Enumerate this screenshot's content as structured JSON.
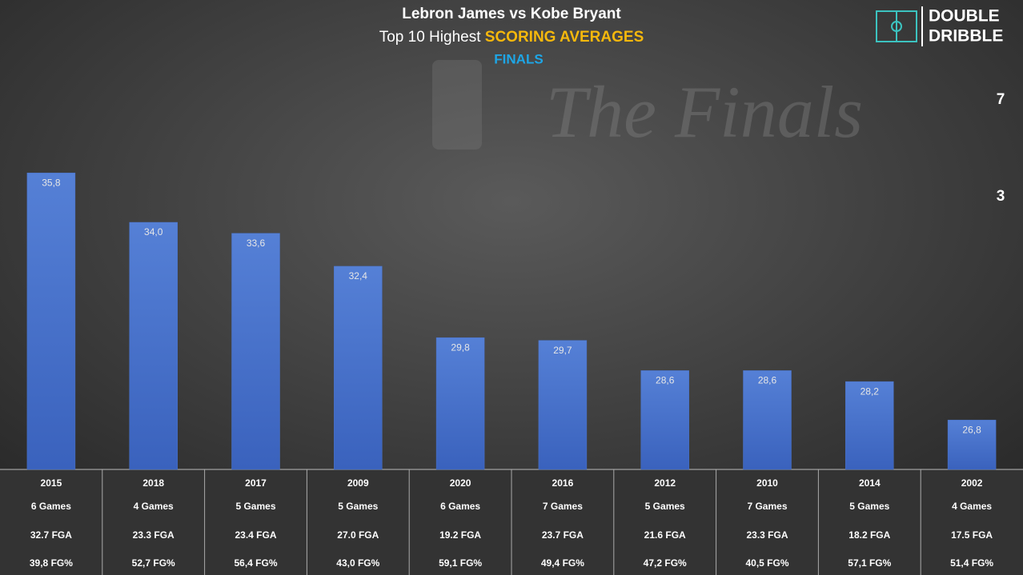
{
  "chart_data": {
    "type": "bar",
    "title": "Lebron James vs Kobe Bryant",
    "subtitle": "Top 10 Highest ",
    "subtitle_highlight": "SCORING AVERAGES",
    "subtitle2": "FINALS",
    "watermark": "The Finals",
    "logo": [
      "DOUBLE",
      "DRIBBLE"
    ],
    "annotations": [
      {
        "label": "7"
      },
      {
        "label": "3"
      }
    ],
    "categories": [
      "2015",
      "2018",
      "2017",
      "2009",
      "2020",
      "2016",
      "2012",
      "2010",
      "2014",
      "2002"
    ],
    "values": [
      35.8,
      34.0,
      33.6,
      32.4,
      29.8,
      29.7,
      28.6,
      28.6,
      28.2,
      26.8
    ],
    "value_labels": [
      "35,8",
      "34,0",
      "33,6",
      "32,4",
      "29,8",
      "29,7",
      "28,6",
      "28,6",
      "28,2",
      "26,8"
    ],
    "color": "#4a74cc",
    "ylim": [
      25,
      37
    ],
    "table": {
      "games": [
        "6 Games",
        "4 Games",
        "5 Games",
        "5 Games",
        "6 Games",
        "7 Games",
        "5 Games",
        "7 Games",
        "5 Games",
        "4 Games"
      ],
      "fga": [
        "32.7 FGA",
        "23.3 FGA",
        "23.4 FGA",
        "27.0 FGA",
        "19.2 FGA",
        "23.7 FGA",
        "21.6 FGA",
        "23.3 FGA",
        "18.2 FGA",
        "17.5 FGA"
      ],
      "fg_pct": [
        "39,8 FG%",
        "52,7 FG%",
        "56,4 FG%",
        "43,0 FG%",
        "59,1 FG%",
        "49,4 FG%",
        "47,2 FG%",
        "40,5 FG%",
        "57,1 FG%",
        "51,4 FG%"
      ]
    }
  }
}
